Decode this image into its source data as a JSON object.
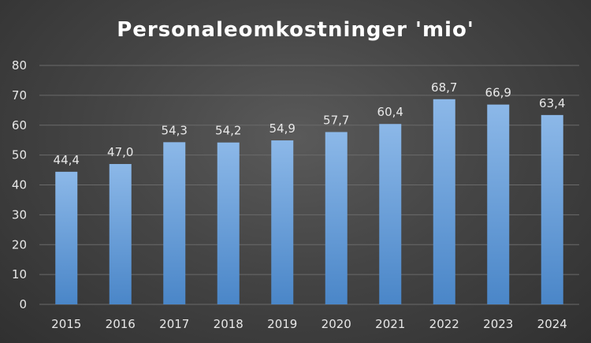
{
  "chart_data": {
    "type": "bar",
    "title": "Personaleomkostninger 'mio'",
    "xlabel": "",
    "ylabel": "",
    "categories": [
      "2015",
      "2016",
      "2017",
      "2018",
      "2019",
      "2020",
      "2021",
      "2022",
      "2023",
      "2024"
    ],
    "values": [
      44.4,
      47.0,
      54.3,
      54.2,
      54.9,
      57.7,
      60.4,
      68.7,
      66.9,
      63.4
    ],
    "data_labels": [
      "44,4",
      "47,0",
      "54,3",
      "54,2",
      "54,9",
      "57,7",
      "60,4",
      "68,7",
      "66,9",
      "63,4"
    ],
    "ylim": [
      0,
      80
    ],
    "yticks": [
      "0",
      "10",
      "20",
      "30",
      "40",
      "50",
      "60",
      "70",
      "80"
    ],
    "grid": true,
    "legend": "none",
    "colors": {
      "bar_top": "#8cb8e8",
      "bar_bottom": "#4a86c8",
      "gridline": "#6a6a6a",
      "text": "#e8e8e8",
      "title": "#ffffff"
    }
  }
}
